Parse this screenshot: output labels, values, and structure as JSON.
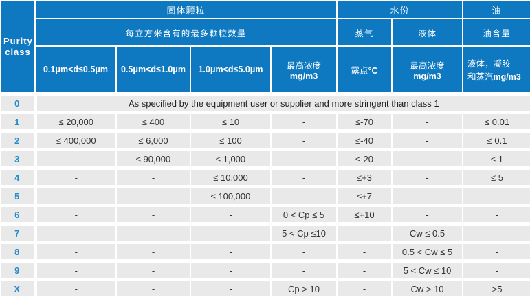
{
  "colors": {
    "header_blue": "#0e78c0",
    "row_gray": "#e9e9e9",
    "class_number_blue": "#1e8bcd",
    "cell_text": "#333333"
  },
  "table": {
    "corner_header": "Purity class",
    "groups": {
      "solid_particles": "固体颗粒",
      "moisture": "水份",
      "oil": "油"
    },
    "subheaders": {
      "particle_count": "每立方米含有的最多颗粒数量",
      "vapor": "蒸气",
      "liquid": "液体",
      "oil_content": "油含量"
    },
    "columns": {
      "size1": "0.1μm<d≤0.5μm",
      "size2": "0.5μm<d≤1.0μm",
      "size3": "1.0μm<d≤5.0μm",
      "particle_conc_line1": "最高浓度",
      "particle_conc_line2": "mg/m3",
      "dew_point_label": "露点",
      "dew_point_unit": "°C",
      "liquid_conc_line1": "最高浓度",
      "liquid_conc_line2": "mg/m3",
      "oil_line1": "液体，凝胶",
      "oil_line2": "和蒸汽",
      "oil_line3": "mg/m3"
    },
    "rows": [
      {
        "class_label": "0",
        "span_text": "As specified by the equipment user or supplier and more stringent than class 1"
      },
      {
        "class_label": "1",
        "cells": [
          "≤ 20,000",
          "≤ 400",
          "≤ 10",
          "-",
          "≤-70",
          "-",
          "≤ 0.01"
        ]
      },
      {
        "class_label": "2",
        "cells": [
          "≤ 400,000",
          "≤ 6,000",
          "≤ 100",
          "-",
          "≤-40",
          "-",
          "≤ 0.1"
        ]
      },
      {
        "class_label": "3",
        "cells": [
          "-",
          "≤ 90,000",
          "≤ 1,000",
          "-",
          "≤-20",
          "-",
          "≤ 1"
        ]
      },
      {
        "class_label": "4",
        "cells": [
          "-",
          "-",
          "≤ 10,000",
          "-",
          "≤+3",
          "-",
          "≤ 5"
        ]
      },
      {
        "class_label": "5",
        "cells": [
          "-",
          "-",
          "≤ 100,000",
          "-",
          "≤+7",
          "-",
          "-"
        ]
      },
      {
        "class_label": "6",
        "cells": [
          "-",
          "-",
          "-",
          "0 < Cp ≤ 5",
          "≤+10",
          "-",
          "-"
        ]
      },
      {
        "class_label": "7",
        "cells": [
          "-",
          "-",
          "-",
          "5 < Cp ≤10",
          "-",
          "Cw ≤ 0.5",
          "-"
        ]
      },
      {
        "class_label": "8",
        "cells": [
          "-",
          "-",
          "-",
          "-",
          "-",
          "0.5 < Cw ≤ 5",
          "-"
        ]
      },
      {
        "class_label": "9",
        "cells": [
          "-",
          "-",
          "-",
          "-",
          "-",
          "5 < Cw ≤ 10",
          "-"
        ]
      },
      {
        "class_label": "X",
        "cells": [
          "-",
          "-",
          "-",
          "Cp > 10",
          "-",
          "Cw > 10",
          ">5"
        ]
      }
    ]
  }
}
